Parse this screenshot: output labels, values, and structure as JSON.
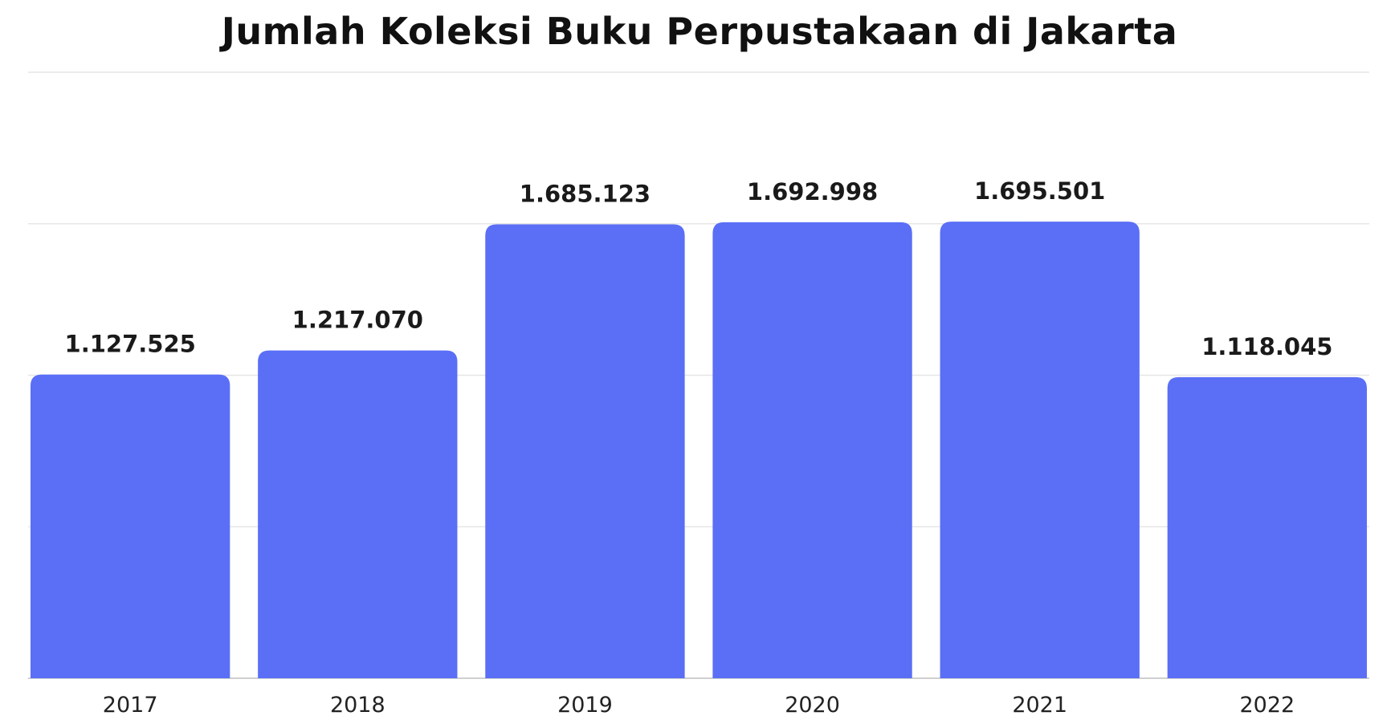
{
  "chart_data": {
    "type": "bar",
    "title": "Jumlah Koleksi Buku Perpustakaan di Jakarta",
    "xlabel": "",
    "ylabel": "",
    "categories": [
      "2017",
      "2018",
      "2019",
      "2020",
      "2021",
      "2022"
    ],
    "values": [
      1127525,
      1217070,
      1685123,
      1692998,
      1695501,
      1118045
    ],
    "value_labels": [
      "1.127.525",
      "1.217.070",
      "1.685.123",
      "1.692.998",
      "1.695.501",
      "1.118.045"
    ],
    "ylim": [
      0,
      2250000
    ],
    "grid": true,
    "legend": "none",
    "bar_color": "#5a6ff6",
    "grid_color": "#e6e6e6",
    "axis_color": "#cfcfcf"
  }
}
